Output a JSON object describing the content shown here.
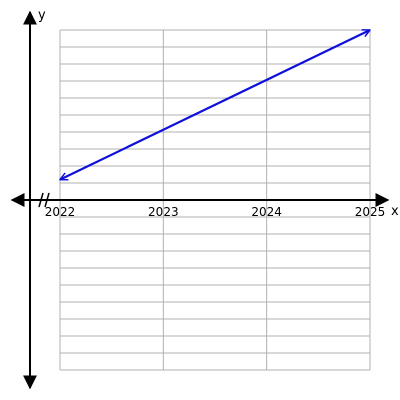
{
  "chart_data": {
    "type": "line",
    "xlabel": "x",
    "ylabel": "y",
    "xlim": [
      2022,
      2025
    ],
    "x_ticks": [
      "2022",
      "2023",
      "2024",
      "2025"
    ],
    "y_axis_break": true,
    "grid": true,
    "grid_rows_above_axis": 10,
    "grid_rows_below_axis": 10,
    "series": [
      {
        "x": [
          2022,
          2025
        ],
        "y": [
          1.2,
          10.0
        ],
        "arrows_both_ends": true,
        "color": "#1010dd"
      }
    ]
  },
  "colors": {
    "grid": "#b0b0b0",
    "axis": "#000000",
    "line": "#1010dd"
  }
}
